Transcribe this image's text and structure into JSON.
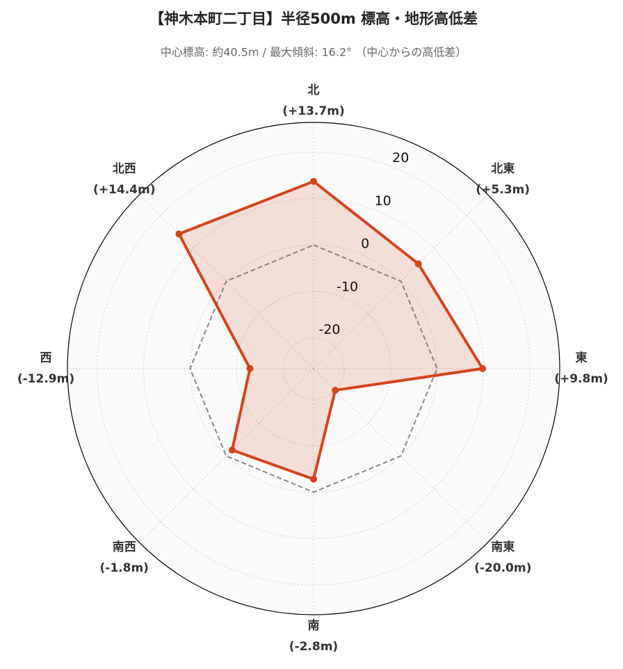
{
  "chart_data": {
    "type": "radar",
    "title": "【神木本町二丁目】半径500m 標高・地形高低差",
    "subtitle": "中心標高: 約40.5m / 最大傾斜: 16.2° （中心からの高低差）",
    "categories": [
      "北",
      "北東",
      "東",
      "南東",
      "南",
      "南西",
      "西",
      "北西"
    ],
    "values": [
      13.7,
      5.3,
      9.8,
      -20.0,
      -2.8,
      -1.8,
      -12.9,
      14.4
    ],
    "value_labels": [
      "(+13.7m)",
      "(+5.3m)",
      "(+9.8m)",
      "(-20.0m)",
      "(-2.8m)",
      "(-1.8m)",
      "(-12.9m)",
      "(+14.4m)"
    ],
    "color": "#d5441c",
    "reference_line": 0,
    "ylim": [
      -26.6,
      26.4
    ],
    "yticks": [
      -20,
      -10,
      0,
      10,
      20
    ],
    "grid": true
  }
}
